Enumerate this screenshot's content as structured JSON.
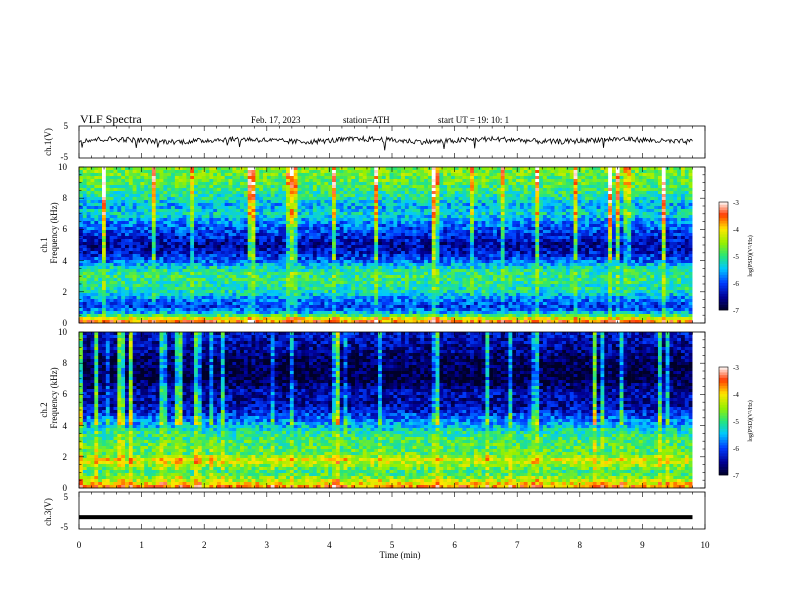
{
  "header": {
    "title": "VLF Spectra",
    "date": "Feb. 17, 2023",
    "station": "station=ATH",
    "start": "start UT =  19: 10: 1"
  },
  "chart_data": [
    {
      "type": "line",
      "panel": "ch1-waveform",
      "ylabel": "ch.1(V)",
      "ylim": [
        -5,
        5
      ],
      "y_ticks": [
        "5",
        "-5"
      ],
      "xlim": [
        0,
        10
      ],
      "x_extent_min": 9.8,
      "mean_value": 0.5,
      "noise_amplitude": 1.2
    },
    {
      "type": "heatmap",
      "panel": "ch1-spectrogram",
      "ylabel_top": "ch.1",
      "ylabel": "Frequency (kHz)",
      "ylim": [
        0,
        10
      ],
      "y_ticks": [
        "10",
        "8",
        "6",
        "4",
        "2",
        "0"
      ],
      "xlim": [
        0,
        10
      ],
      "colorbar": {
        "label": "log(PSD)(V²/Hz)",
        "range": [
          -7,
          -3
        ],
        "ticks": [
          "-3",
          "-4",
          "-5",
          "-6",
          "-7"
        ]
      },
      "frequency_profile_khz": [
        {
          "f": 0.0,
          "v": -3.4
        },
        {
          "f": 0.3,
          "v": -4.2
        },
        {
          "f": 0.6,
          "v": -5.4
        },
        {
          "f": 1.0,
          "v": -6.1
        },
        {
          "f": 1.5,
          "v": -5.8
        },
        {
          "f": 2.0,
          "v": -5.2
        },
        {
          "f": 2.5,
          "v": -5.1
        },
        {
          "f": 3.0,
          "v": -5.0
        },
        {
          "f": 3.5,
          "v": -5.2
        },
        {
          "f": 4.0,
          "v": -5.9
        },
        {
          "f": 4.5,
          "v": -6.3
        },
        {
          "f": 5.0,
          "v": -6.5
        },
        {
          "f": 5.5,
          "v": -6.2
        },
        {
          "f": 6.0,
          "v": -6.0
        },
        {
          "f": 6.5,
          "v": -5.7
        },
        {
          "f": 7.0,
          "v": -5.3
        },
        {
          "f": 7.5,
          "v": -5.6
        },
        {
          "f": 8.0,
          "v": -5.2
        },
        {
          "f": 9.0,
          "v": -4.8
        },
        {
          "f": 10.0,
          "v": -4.6
        }
      ]
    },
    {
      "type": "heatmap",
      "panel": "ch2-spectrogram",
      "ylabel_top": "ch.2",
      "ylabel": "Frequency (kHz)",
      "ylim": [
        0,
        10
      ],
      "y_ticks": [
        "10",
        "8",
        "6",
        "4",
        "2",
        "0"
      ],
      "xlim": [
        0,
        10
      ],
      "colorbar": {
        "label": "log(PSD)(V²/Hz)",
        "range": [
          -7,
          -3
        ],
        "ticks": [
          "-3",
          "-4",
          "-5",
          "-6",
          "-7"
        ]
      },
      "frequency_profile_khz": [
        {
          "f": 0.0,
          "v": -3.6
        },
        {
          "f": 0.5,
          "v": -4.4
        },
        {
          "f": 1.0,
          "v": -5.0
        },
        {
          "f": 1.8,
          "v": -4.2
        },
        {
          "f": 2.2,
          "v": -4.8
        },
        {
          "f": 3.0,
          "v": -4.9
        },
        {
          "f": 3.5,
          "v": -5.1
        },
        {
          "f": 4.0,
          "v": -5.5
        },
        {
          "f": 4.5,
          "v": -5.9
        },
        {
          "f": 5.0,
          "v": -6.3
        },
        {
          "f": 5.5,
          "v": -6.5
        },
        {
          "f": 6.0,
          "v": -6.4
        },
        {
          "f": 6.5,
          "v": -6.6
        },
        {
          "f": 7.0,
          "v": -6.9
        },
        {
          "f": 8.0,
          "v": -6.8
        },
        {
          "f": 9.0,
          "v": -6.5
        },
        {
          "f": 10.0,
          "v": -6.3
        }
      ]
    },
    {
      "type": "line",
      "panel": "ch3-waveform",
      "ylabel": "ch.3(V)",
      "ylim": [
        -5,
        5
      ],
      "y_ticks": [
        "5",
        "-5"
      ],
      "xlim": [
        0,
        10
      ],
      "x_extent_min": 9.8,
      "mean_value": -1.8,
      "xlabel": "Time (min)",
      "x_ticks": [
        "0",
        "1",
        "2",
        "3",
        "4",
        "5",
        "6",
        "7",
        "8",
        "9",
        "10"
      ]
    }
  ]
}
